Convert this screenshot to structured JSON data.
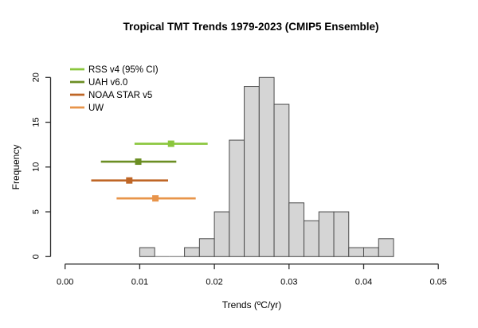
{
  "figure": {
    "background": "#ffffff",
    "text_color": "#000000",
    "axis_color": "#2b2b2b"
  },
  "chart_data": {
    "type": "bar",
    "subtype": "histogram-with-error-bars",
    "title": "Tropical TMT Trends 1979-2023 (CMIP5 Ensemble)",
    "xlabel": "Trends (ºC/yr)",
    "ylabel": "Frequency",
    "xlim": [
      0.0,
      0.05
    ],
    "ylim": [
      0,
      20
    ],
    "grid": false,
    "x_tick_values": [
      0.0,
      0.01,
      0.02,
      0.03,
      0.04,
      0.05
    ],
    "x_tick_labels": [
      "0.00",
      "0.01",
      "0.02",
      "0.03",
      "0.04",
      "0.05"
    ],
    "y_tick_values": [
      0,
      5,
      10,
      15,
      20
    ],
    "y_tick_labels": [
      "0",
      "5",
      "10",
      "15",
      "20"
    ],
    "histogram": {
      "bin_start": 0.01,
      "bin_width": 0.002,
      "counts": [
        1,
        0,
        0,
        1,
        2,
        5,
        13,
        19,
        20,
        17,
        6,
        4,
        5,
        5,
        1,
        1,
        2
      ],
      "fill": "#D5D5D5",
      "stroke": "#4A4A4A"
    },
    "error_bars": [
      {
        "name": "RSS v4 (95% CI)",
        "center": 0.0142,
        "lo": 0.0093,
        "hi": 0.0191,
        "y": 12.6,
        "color": "#8AC63C"
      },
      {
        "name": "UAH v6.0",
        "center": 0.0098,
        "lo": 0.0048,
        "hi": 0.0149,
        "y": 10.6,
        "color": "#6B8E23"
      },
      {
        "name": "NOAA STAR v5",
        "center": 0.0086,
        "lo": 0.0035,
        "hi": 0.0138,
        "y": 8.5,
        "color": "#BF6626"
      },
      {
        "name": "UW",
        "center": 0.0121,
        "lo": 0.0069,
        "hi": 0.0175,
        "y": 6.5,
        "color": "#E8944A"
      }
    ],
    "legend": {
      "position": "top-left",
      "entries": [
        {
          "label": "RSS v4 (95% CI)",
          "color": "#8AC63C"
        },
        {
          "label": "UAH v6.0",
          "color": "#6B8E23"
        },
        {
          "label": "NOAA STAR v5",
          "color": "#BF6626"
        },
        {
          "label": "UW",
          "color": "#E8944A"
        }
      ]
    }
  }
}
